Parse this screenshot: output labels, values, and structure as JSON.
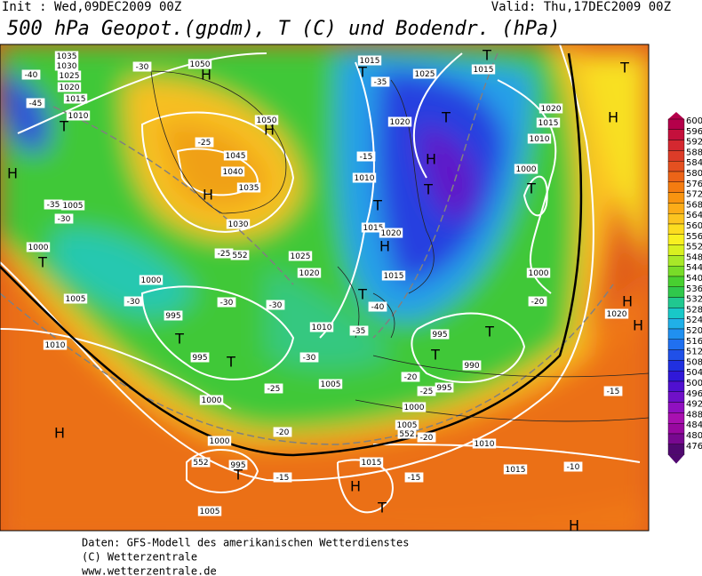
{
  "header": {
    "init": "Init : Wed,09DEC2009 00Z",
    "valid": "Valid: Thu,17DEC2009 00Z",
    "title": "500 hPa Geopot.(gpdm), T (C) und Bodendr. (hPa)"
  },
  "scale": {
    "values": [
      600,
      596,
      592,
      588,
      584,
      580,
      576,
      572,
      568,
      564,
      560,
      556,
      552,
      548,
      544,
      540,
      536,
      532,
      528,
      524,
      520,
      516,
      512,
      508,
      504,
      500,
      496,
      492,
      488,
      484,
      480,
      476
    ],
    "colors": [
      "#b4004a",
      "#c4103c",
      "#d42830",
      "#dc3c28",
      "#e45020",
      "#ec6418",
      "#f47c10",
      "#f89410",
      "#fcac18",
      "#fcc420",
      "#fcdc20",
      "#f8f020",
      "#d8f020",
      "#a8e828",
      "#78dc28",
      "#48d030",
      "#30c84c",
      "#20c890",
      "#18c8c8",
      "#20b0e8",
      "#2090f0",
      "#2070f0",
      "#2050e8",
      "#2030e0",
      "#3018d8",
      "#5010d0",
      "#7010c8",
      "#9010c0",
      "#a810b0",
      "#9808a0",
      "#780890",
      "#500870"
    ]
  },
  "map": {
    "labels": [
      "1035",
      "1030",
      "1025",
      "1020",
      "1015",
      "1010",
      "-40",
      "-45",
      "-30",
      "1050",
      "-25",
      "1045",
      "1040",
      "1035",
      "1030",
      "1050",
      "H",
      "H",
      "H",
      "T",
      "H",
      "1005",
      "-35",
      "-30",
      "1000",
      "T",
      "1025",
      "1020",
      "-25",
      "552",
      "1000",
      "-30",
      "1005",
      "995",
      "-30",
      "-30",
      "1010",
      "T",
      "995",
      "T",
      "-30",
      "-25",
      "1005",
      "1000",
      "H",
      "-20",
      "1000",
      "552",
      "995",
      "T",
      "-15",
      "1005",
      "1015",
      "H",
      "-15",
      "T",
      "1010",
      "T",
      "-40",
      "-35",
      "1015",
      "T",
      "-35",
      "1025",
      "1015",
      "T",
      "T",
      "H",
      "1020",
      "T",
      "-15",
      "H",
      "1010",
      "T",
      "T",
      "1015",
      "1020",
      "H",
      "1015",
      "1020",
      "1015",
      "1010",
      "1000",
      "T",
      "1000",
      "-20",
      "1020",
      "H",
      "995",
      "T",
      "T",
      "990",
      "-20",
      "-25",
      "995",
      "1000",
      "1005",
      "552",
      "-20",
      "1010",
      "1015",
      "-10",
      "-15",
      "H",
      "H"
    ]
  },
  "footer": {
    "line1": "Daten: GFS-Modell des amerikanischen Wetterdienstes",
    "line2": "(C) Wetterzentrale",
    "line3": "www.wetterzentrale.de"
  }
}
